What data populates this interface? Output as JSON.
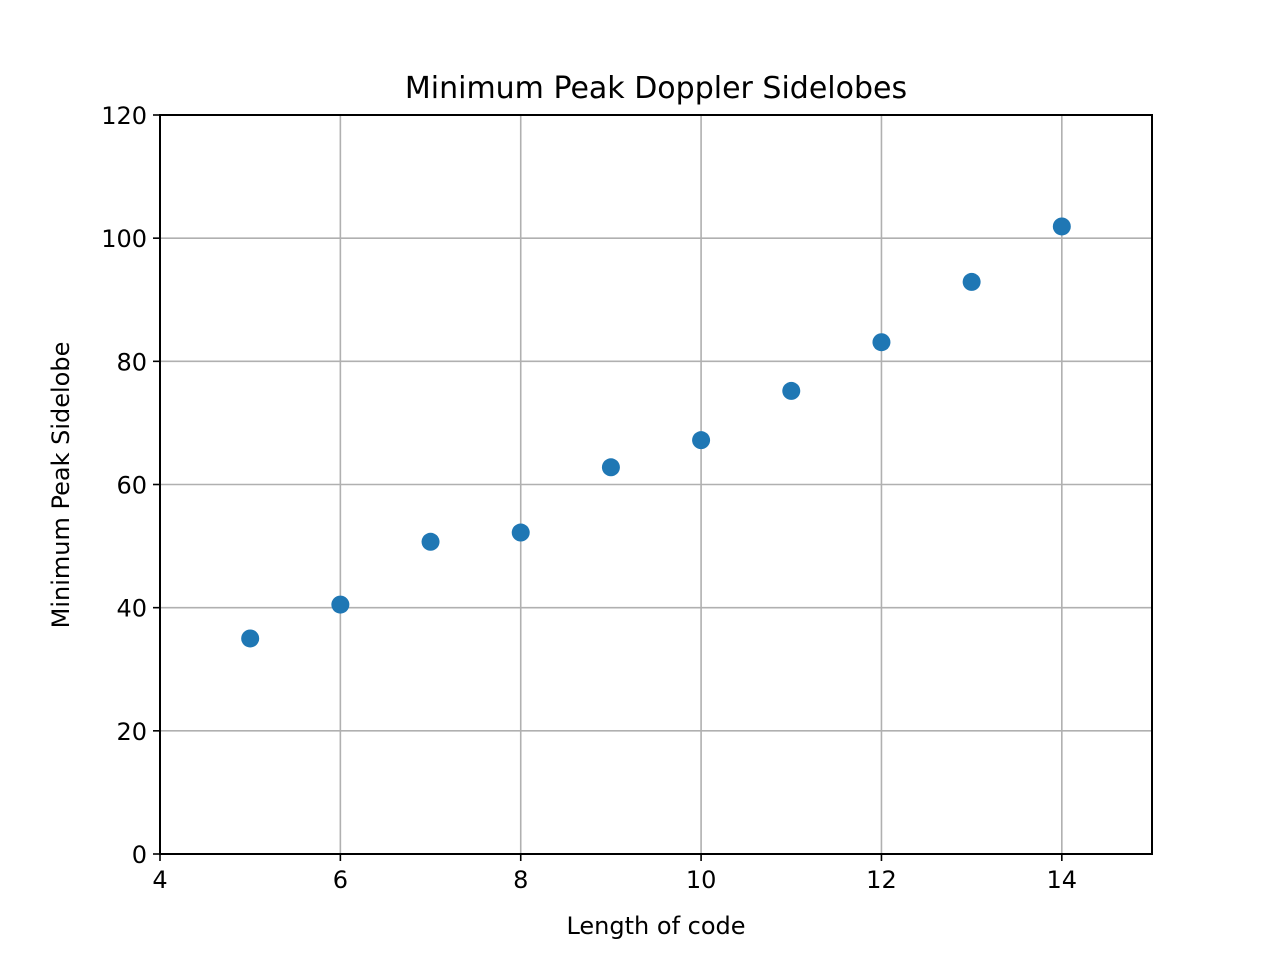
{
  "chart_data": {
    "type": "scatter",
    "title": "Minimum Peak Doppler Sidelobes",
    "xlabel": "Length of code",
    "ylabel": "Minimum Peak Sidelobe",
    "xlim": [
      4,
      15
    ],
    "ylim": [
      0,
      120
    ],
    "xticks": [
      4,
      6,
      8,
      10,
      12,
      14
    ],
    "yticks": [
      0,
      20,
      40,
      60,
      80,
      100,
      120
    ],
    "grid": true,
    "marker_color": "#1f77b4",
    "series": [
      {
        "x": [
          5,
          6,
          7,
          8,
          9,
          10,
          11,
          12,
          13,
          14
        ],
        "y": [
          35.0,
          40.5,
          50.7,
          52.2,
          62.8,
          67.2,
          75.2,
          83.1,
          92.9,
          101.9
        ]
      }
    ]
  }
}
